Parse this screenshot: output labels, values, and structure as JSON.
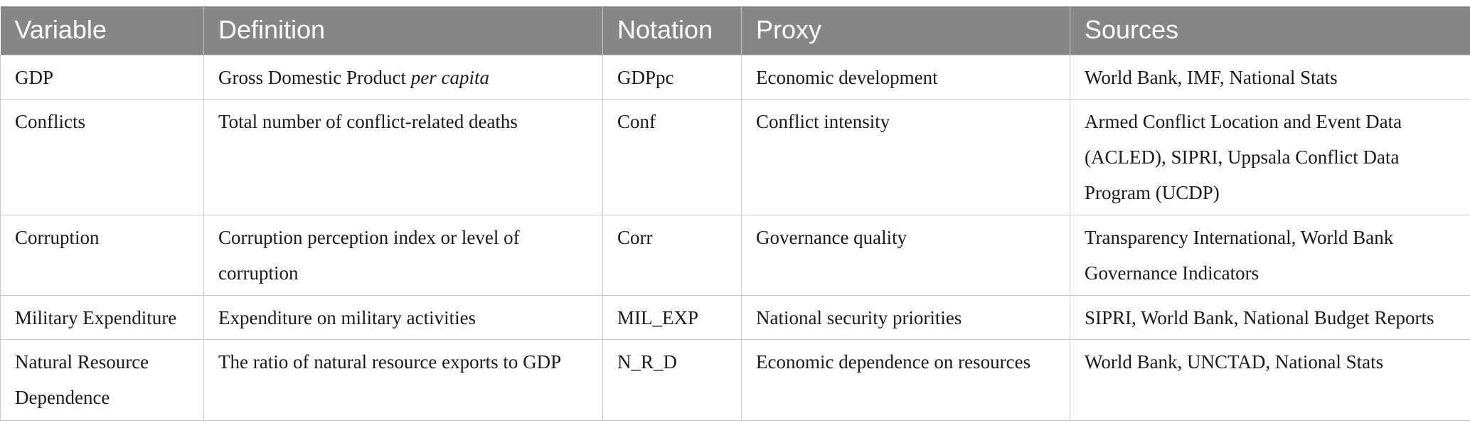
{
  "table": {
    "headers": [
      "Variable",
      "Definition",
      "Notation",
      "Proxy",
      "Sources"
    ],
    "rows": [
      {
        "variable": "GDP",
        "definition_main": "Gross Domestic Product ",
        "definition_italic": "per capita",
        "notation": "GDPpc",
        "proxy": "Economic development",
        "sources": "World Bank, IMF, National Stats"
      },
      {
        "variable": "Conflicts",
        "definition_main": "Total number of conflict-related deaths",
        "notation": "Conf",
        "proxy": "Conflict intensity",
        "sources": "Armed Conflict Location and Event Data (ACLED), SIPRI, Uppsala Conflict Data Program (UCDP)"
      },
      {
        "variable": "Corruption",
        "definition_main": "Corruption perception index or level of corruption",
        "notation": "Corr",
        "proxy": "Governance quality",
        "sources": "Transparency International, World Bank Governance Indicators"
      },
      {
        "variable": "Military Expenditure",
        "definition_main": "Expenditure on military activities",
        "notation": "MIL_EXP",
        "proxy": "National security priorities",
        "sources": "SIPRI, World Bank, National Budget Reports"
      },
      {
        "variable": "Natural Resource Dependence",
        "definition_main": "The ratio of natural resource exports to GDP",
        "notation": "N_R_D",
        "proxy": "Economic dependence on resources",
        "sources": "World Bank, UNCTAD, National Stats"
      }
    ]
  }
}
